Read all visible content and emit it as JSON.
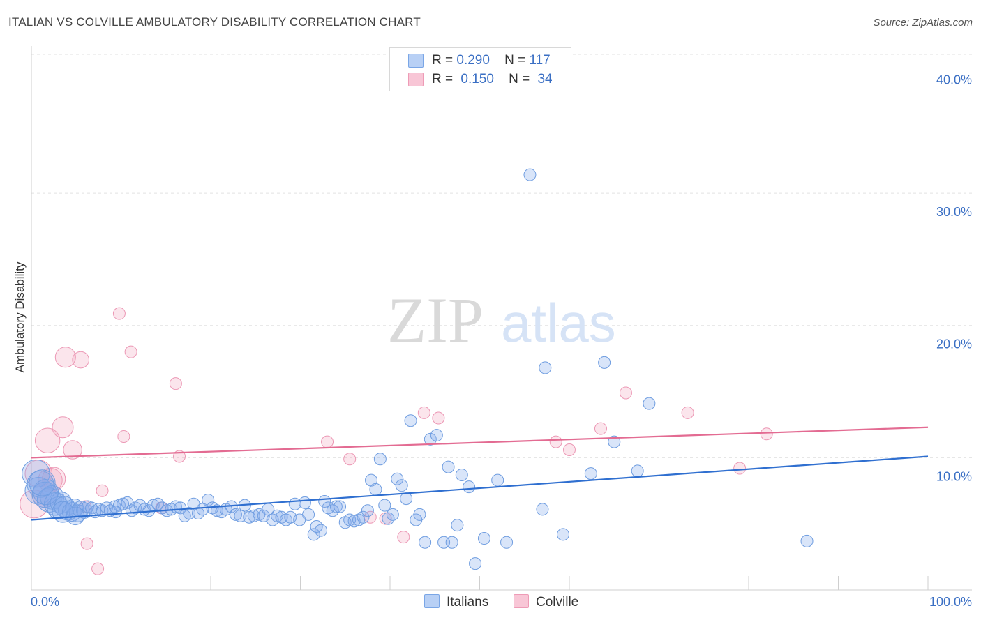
{
  "title": "ITALIAN VS COLVILLE AMBULATORY DISABILITY CORRELATION CHART",
  "source": "Source: ZipAtlas.com",
  "watermark": {
    "zip": "ZIP",
    "atlas": "atlas"
  },
  "legend_top": [
    {
      "swatch_color": "#b8d0f5",
      "swatch_border": "#7aa6e6",
      "r_label": "R =",
      "r_value": "0.290",
      "n_label": "N =",
      "n_value": "117"
    },
    {
      "swatch_color": "#f8c6d6",
      "swatch_border": "#ee9bb6",
      "r_label": "R =",
      "r_value": "0.150",
      "n_label": "N =",
      "n_value": "34"
    }
  ],
  "legend_bottom": [
    {
      "label": "Italians",
      "swatch_color": "#b8d0f5",
      "swatch_border": "#7aa6e6"
    },
    {
      "label": "Colville",
      "swatch_color": "#f8c6d6",
      "swatch_border": "#ee9bb6"
    }
  ],
  "colors": {
    "blue_fill": "rgba(130,170,235,0.30)",
    "blue_stroke": "#6f9de0",
    "blue_line": "#2f6fd0",
    "pink_fill": "rgba(240,150,180,0.25)",
    "pink_stroke": "#ec98b5",
    "pink_line": "#e36b92",
    "grid": "#e2e2e2",
    "axis_text": "#3a6fc4"
  },
  "chart_data": {
    "type": "scatter",
    "title": "ITALIAN VS COLVILLE AMBULATORY DISABILITY CORRELATION CHART",
    "xlabel": "",
    "ylabel": "Ambulatory Disability",
    "xlim": [
      0,
      100
    ],
    "ylim": [
      0,
      40.5
    ],
    "x_tick_labels": [
      "0.0%",
      "100.0%"
    ],
    "y_ticks": [
      10,
      20,
      30,
      40
    ],
    "y_tick_labels": [
      "10.0%",
      "20.0%",
      "30.0%",
      "40.0%"
    ],
    "grid": true,
    "legend_position": "top-center",
    "series": [
      {
        "name": "Italians",
        "trend": [
          [
            0,
            5.3
          ],
          [
            100,
            10.1
          ]
        ],
        "points": [
          [
            0.5,
            8.8
          ],
          [
            0.8,
            7.5
          ],
          [
            1.0,
            8.0
          ],
          [
            1.5,
            7.2
          ],
          [
            2.0,
            6.8
          ],
          [
            2.3,
            7.0
          ],
          [
            2.7,
            6.5
          ],
          [
            3.0,
            6.2
          ],
          [
            3.3,
            6.6
          ],
          [
            3.7,
            6.3
          ],
          [
            4.1,
            6.0
          ],
          [
            4.5,
            5.9
          ],
          [
            4.8,
            6.2
          ],
          [
            5.2,
            5.8
          ],
          [
            5.5,
            6.1
          ],
          [
            5.9,
            6.0
          ],
          [
            6.3,
            6.3
          ],
          [
            6.7,
            6.2
          ],
          [
            7.1,
            5.9
          ],
          [
            7.5,
            6.1
          ],
          [
            7.9,
            6.0
          ],
          [
            8.4,
            6.2
          ],
          [
            8.8,
            6.0
          ],
          [
            9.3,
            6.3
          ],
          [
            9.8,
            6.4
          ],
          [
            10.2,
            6.5
          ],
          [
            10.7,
            6.6
          ],
          [
            11.2,
            6.0
          ],
          [
            11.6,
            6.2
          ],
          [
            12.1,
            6.4
          ],
          [
            12.6,
            6.1
          ],
          [
            13.1,
            6.0
          ],
          [
            13.6,
            6.4
          ],
          [
            14.1,
            6.5
          ],
          [
            14.6,
            6.2
          ],
          [
            15.1,
            6.0
          ],
          [
            15.6,
            6.1
          ],
          [
            16.1,
            6.3
          ],
          [
            16.6,
            6.2
          ],
          [
            17.1,
            5.6
          ],
          [
            17.6,
            5.8
          ],
          [
            18.1,
            6.5
          ],
          [
            18.6,
            5.8
          ],
          [
            19.1,
            6.1
          ],
          [
            19.7,
            6.8
          ],
          [
            20.2,
            6.2
          ],
          [
            20.7,
            6.0
          ],
          [
            21.2,
            5.9
          ],
          [
            21.7,
            6.1
          ],
          [
            22.3,
            6.3
          ],
          [
            22.8,
            5.7
          ],
          [
            23.3,
            5.6
          ],
          [
            23.8,
            6.4
          ],
          [
            24.3,
            5.5
          ],
          [
            24.8,
            5.6
          ],
          [
            25.4,
            5.7
          ],
          [
            25.9,
            5.6
          ],
          [
            26.4,
            6.1
          ],
          [
            26.9,
            5.3
          ],
          [
            27.4,
            5.6
          ],
          [
            27.9,
            5.5
          ],
          [
            28.4,
            5.3
          ],
          [
            28.9,
            5.5
          ],
          [
            29.4,
            6.5
          ],
          [
            29.9,
            5.3
          ],
          [
            30.5,
            6.6
          ],
          [
            30.9,
            5.7
          ],
          [
            31.5,
            4.2
          ],
          [
            31.8,
            4.8
          ],
          [
            32.3,
            4.5
          ],
          [
            32.7,
            6.7
          ],
          [
            33.1,
            6.2
          ],
          [
            33.6,
            6.0
          ],
          [
            34.0,
            6.3
          ],
          [
            34.4,
            6.3
          ],
          [
            35.0,
            5.1
          ],
          [
            35.5,
            5.3
          ],
          [
            36.0,
            5.2
          ],
          [
            36.5,
            5.3
          ],
          [
            37.0,
            5.5
          ],
          [
            37.5,
            6.0
          ],
          [
            37.9,
            8.3
          ],
          [
            38.4,
            7.6
          ],
          [
            38.9,
            9.9
          ],
          [
            39.4,
            6.4
          ],
          [
            39.8,
            5.4
          ],
          [
            40.3,
            5.7
          ],
          [
            40.8,
            8.4
          ],
          [
            41.3,
            7.9
          ],
          [
            41.8,
            6.9
          ],
          [
            42.3,
            12.8
          ],
          [
            42.9,
            5.3
          ],
          [
            43.3,
            5.7
          ],
          [
            43.9,
            3.6
          ],
          [
            44.5,
            11.4
          ],
          [
            45.2,
            11.7
          ],
          [
            46.0,
            3.6
          ],
          [
            46.5,
            9.3
          ],
          [
            46.9,
            3.6
          ],
          [
            47.5,
            4.9
          ],
          [
            48.0,
            8.7
          ],
          [
            48.8,
            7.8
          ],
          [
            49.5,
            2.0
          ],
          [
            50.5,
            3.9
          ],
          [
            52.0,
            8.3
          ],
          [
            53.0,
            3.6
          ],
          [
            55.6,
            31.4
          ],
          [
            57.0,
            6.1
          ],
          [
            57.3,
            16.8
          ],
          [
            59.3,
            4.2
          ],
          [
            62.4,
            8.8
          ],
          [
            63.9,
            17.2
          ],
          [
            65.0,
            11.2
          ],
          [
            67.6,
            9.0
          ],
          [
            68.9,
            14.1
          ],
          [
            86.5,
            3.7
          ],
          [
            1.6,
            7.4
          ],
          [
            4.9,
            5.6
          ],
          [
            1.2,
            8.1
          ],
          [
            3.5,
            5.9
          ],
          [
            9.4,
            5.9
          ]
        ]
      },
      {
        "name": "Colville",
        "trend": [
          [
            0,
            10.0
          ],
          [
            100,
            12.3
          ]
        ],
        "points": [
          [
            0.3,
            6.5
          ],
          [
            0.8,
            8.8
          ],
          [
            1.5,
            7.2
          ],
          [
            1.8,
            11.3
          ],
          [
            2.1,
            8.3
          ],
          [
            3.5,
            12.3
          ],
          [
            3.8,
            17.6
          ],
          [
            4.6,
            10.6
          ],
          [
            5.5,
            17.4
          ],
          [
            6.0,
            6.3
          ],
          [
            6.2,
            3.5
          ],
          [
            7.4,
            1.6
          ],
          [
            7.9,
            7.5
          ],
          [
            9.8,
            20.9
          ],
          [
            10.3,
            11.6
          ],
          [
            11.1,
            18.0
          ],
          [
            14.5,
            6.2
          ],
          [
            16.1,
            15.6
          ],
          [
            16.5,
            10.1
          ],
          [
            33.0,
            11.2
          ],
          [
            35.5,
            9.9
          ],
          [
            39.5,
            5.4
          ],
          [
            41.5,
            4.0
          ],
          [
            43.8,
            13.4
          ],
          [
            45.4,
            13.0
          ],
          [
            58.5,
            11.2
          ],
          [
            60.0,
            10.6
          ],
          [
            63.5,
            12.2
          ],
          [
            66.3,
            14.9
          ],
          [
            73.2,
            13.4
          ],
          [
            79.0,
            9.2
          ],
          [
            82.0,
            11.8
          ],
          [
            37.8,
            5.5
          ],
          [
            2.5,
            8.4
          ]
        ]
      }
    ]
  }
}
